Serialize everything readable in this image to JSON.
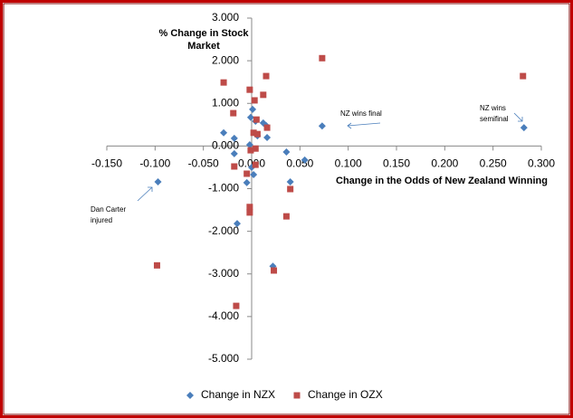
{
  "chart_data": {
    "type": "scatter",
    "y_axis_title": [
      "% Change in Stock",
      "Market"
    ],
    "x_axis_title": "Change in the Odds of New Zealand Winning",
    "series": [
      {
        "name": "Change in NZX",
        "color": "#4a7ebb",
        "marker": "diamond",
        "x": [
          0.282,
          0.073,
          -0.097,
          -0.029,
          -0.018,
          -0.018,
          -0.015,
          -0.005,
          -0.002,
          -0.001,
          0.001,
          0.0,
          0.002,
          0.004,
          0.006,
          0.012,
          0.016,
          0.015,
          0.022,
          0.036,
          0.04,
          0.055
        ],
        "values": [
          0.43,
          0.47,
          -0.84,
          0.31,
          0.18,
          -0.18,
          -1.82,
          -0.86,
          0.03,
          0.67,
          0.86,
          -0.5,
          -0.67,
          0.58,
          0.24,
          0.54,
          0.2,
          0.48,
          -2.82,
          -0.14,
          -0.84,
          -0.33
        ]
      },
      {
        "name": "Change in OZX",
        "color": "#be4b48",
        "marker": "square",
        "x": [
          -0.098,
          -0.029,
          -0.019,
          -0.018,
          -0.016,
          -0.005,
          -0.002,
          -0.002,
          -0.002,
          -0.001,
          0.002,
          0.003,
          0.004,
          0.004,
          0.006,
          0.012,
          0.015,
          0.016,
          0.023,
          0.036,
          0.04,
          0.073,
          0.281,
          0.005
        ],
        "values": [
          -2.8,
          1.49,
          0.77,
          -0.48,
          -3.75,
          -0.65,
          1.32,
          -1.43,
          -1.56,
          -0.1,
          0.31,
          1.07,
          -0.44,
          -0.06,
          0.28,
          1.2,
          1.64,
          0.43,
          -2.92,
          -1.65,
          -1.01,
          2.06,
          1.64,
          0.62
        ]
      }
    ],
    "annotations": [
      [
        "NZ wins final"
      ],
      [
        "NZ wins",
        "semifinal"
      ],
      [
        "Dan Carter",
        "injured"
      ]
    ],
    "xlim": [
      -0.15,
      0.3
    ],
    "xticks": [
      {
        "value": -0.15,
        "label": "-0.150"
      },
      {
        "value": -0.1,
        "label": "-0.100"
      },
      {
        "value": -0.05,
        "label": "-0.050"
      },
      {
        "value": 0,
        "label": "0.000"
      },
      {
        "value": 0.05,
        "label": "0.050"
      },
      {
        "value": 0.1,
        "label": "0.100"
      },
      {
        "value": 0.15,
        "label": "0.150"
      },
      {
        "value": 0.2,
        "label": "0.200"
      },
      {
        "value": 0.25,
        "label": "0.250"
      },
      {
        "value": 0.3,
        "label": "0.300"
      }
    ],
    "ylim": [
      -5,
      3
    ],
    "yticks": [
      {
        "value": 3,
        "label": "3.000"
      },
      {
        "value": 2,
        "label": "2.000"
      },
      {
        "value": 1,
        "label": "1.000"
      },
      {
        "value": 0,
        "label": "0.000"
      },
      {
        "value": -1,
        "label": "-1.000"
      },
      {
        "value": -2,
        "label": "-2.000"
      },
      {
        "value": -3,
        "label": "-3.000"
      },
      {
        "value": -4,
        "label": "-4.000"
      },
      {
        "value": -5,
        "label": "-5.000"
      }
    ],
    "legend": "bottom"
  }
}
